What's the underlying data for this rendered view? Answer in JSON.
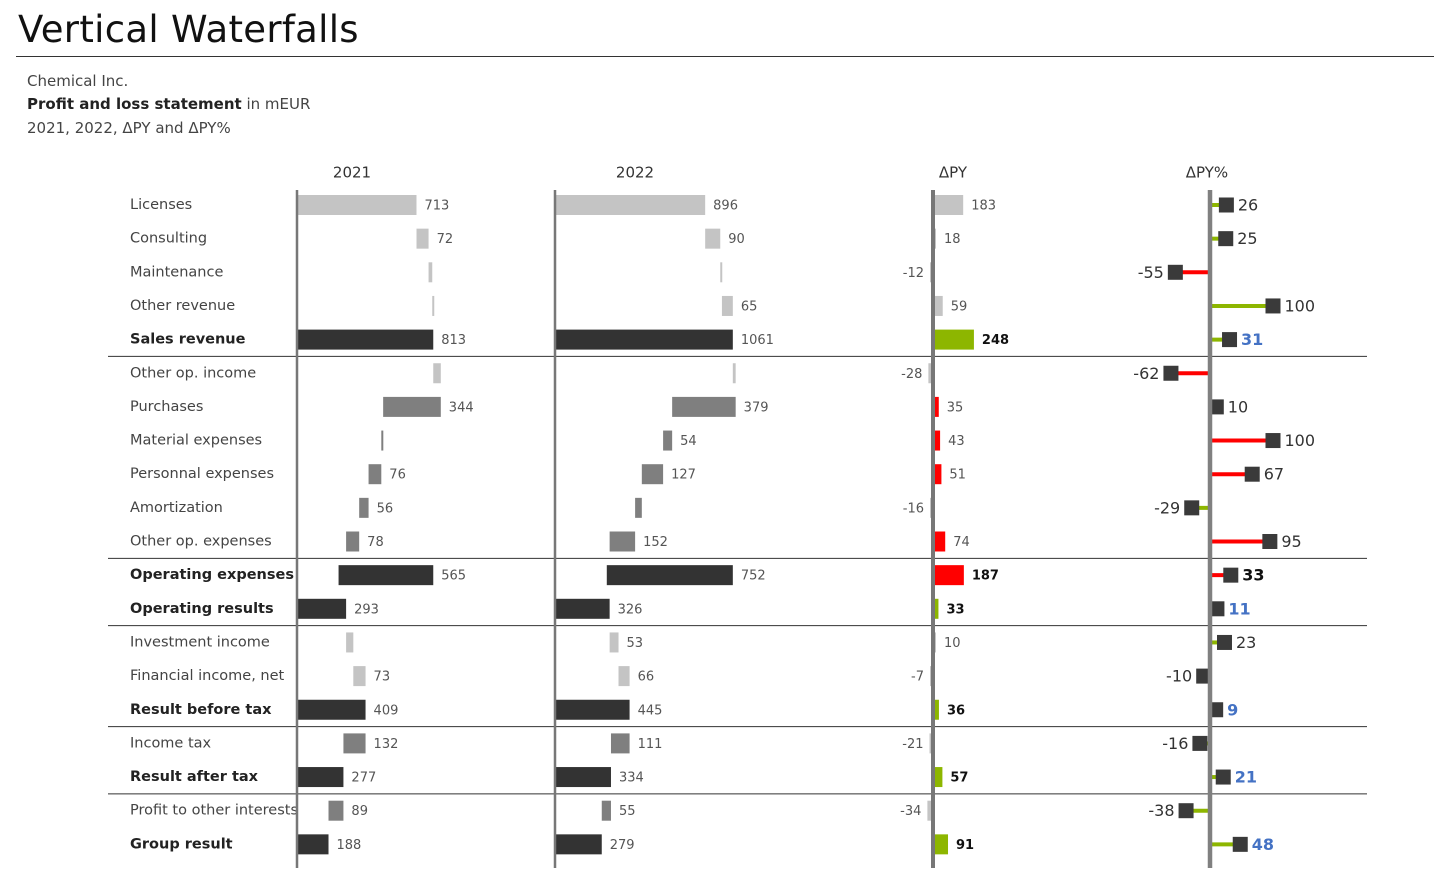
{
  "title": "Vertical Waterfalls",
  "subtitle": {
    "company": "Chemical Inc.",
    "statement_bold": "Profit and loss statement",
    "statement_unit": " in mEUR",
    "periods": "2021, 2022,  ΔPY and ΔPY%"
  },
  "colors": {
    "revenue": "#c4c4c4",
    "expense": "#7f7f7f",
    "total": "#333333",
    "positive": "#8db600",
    "negative": "#ff0000",
    "axis": "#808080",
    "highlight_text": "#4472c4"
  },
  "chart_data": {
    "type": "waterfall",
    "column_headers": [
      "2021",
      "2022",
      "ΔPY",
      "ΔPY%"
    ],
    "rows": [
      {
        "label": "Licenses",
        "bold": false,
        "kind": "inflow",
        "y2021": 713,
        "y2022": 896,
        "dpy": 183,
        "dpct": 26,
        "good": true
      },
      {
        "label": "Consulting",
        "bold": false,
        "kind": "inflow",
        "y2021": 72,
        "y2022": 90,
        "dpy": 18,
        "dpct": 25,
        "good": true
      },
      {
        "label": "Maintenance",
        "bold": false,
        "kind": "inflow",
        "y2021": 22,
        "y2022": 10,
        "y2021_label": "",
        "y2022_label": "",
        "dpy": -12,
        "dpct": -55,
        "good": false
      },
      {
        "label": "Other revenue",
        "bold": false,
        "kind": "inflow",
        "y2021": 6,
        "y2022": 65,
        "y2021_label": "",
        "dpy": 59,
        "dpct": 100,
        "good": true
      },
      {
        "label": "Sales revenue",
        "bold": true,
        "kind": "total",
        "y2021": 813,
        "y2022": 1061,
        "dpy": 248,
        "dpct": 31,
        "good": true,
        "separator_after": true
      },
      {
        "label": "Other op. income",
        "bold": false,
        "kind": "inflow_grey",
        "y2021": 45,
        "y2022": 17,
        "y2021_label": "",
        "y2022_label": "",
        "dpy": -28,
        "dpct": -62,
        "good": false
      },
      {
        "label": "Purchases",
        "bold": false,
        "kind": "outflow",
        "y2021": 344,
        "y2022": 379,
        "dpy": 35,
        "dpct": 10,
        "good": false
      },
      {
        "label": "Material expenses",
        "bold": false,
        "kind": "outflow",
        "y2021": 11,
        "y2022": 54,
        "y2021_label": "",
        "dpy": 43,
        "dpct": 100,
        "good": false
      },
      {
        "label": "Personnal expenses",
        "bold": false,
        "kind": "outflow",
        "y2021": 76,
        "y2022": 127,
        "dpy": 51,
        "dpct": 67,
        "good": false
      },
      {
        "label": "Amortization",
        "bold": false,
        "kind": "outflow",
        "y2021": 56,
        "y2022": 40,
        "y2022_label": "",
        "dpy": -16,
        "dpct": -29,
        "good": true
      },
      {
        "label": "Other op. expenses",
        "bold": false,
        "kind": "outflow",
        "y2021": 78,
        "y2022": 152,
        "dpy": 74,
        "dpct": 95,
        "good": false
      },
      {
        "label": "Operating expenses",
        "bold": true,
        "kind": "total_expense",
        "y2021": 565,
        "y2022": 752,
        "dpy": 187,
        "dpct": 33,
        "good": false,
        "separator_before": true
      },
      {
        "label": "Operating results",
        "bold": true,
        "kind": "total",
        "y2021": 293,
        "y2022": 326,
        "dpy": 33,
        "dpct": 11,
        "good": true,
        "separator_after": true
      },
      {
        "label": "Investment income",
        "bold": false,
        "kind": "inflow",
        "y2021": 43,
        "y2022": 53,
        "y2021_label": "",
        "dpy": 10,
        "dpct": 23,
        "good": true
      },
      {
        "label": "Financial income, net",
        "bold": false,
        "kind": "inflow",
        "y2021": 73,
        "y2022": 66,
        "dpy": -7,
        "dpct": -10,
        "good": false
      },
      {
        "label": "Result before tax",
        "bold": true,
        "kind": "total",
        "y2021": 409,
        "y2022": 445,
        "dpy": 36,
        "dpct": 9,
        "good": true,
        "separator_after": true
      },
      {
        "label": "Income tax",
        "bold": false,
        "kind": "outflow",
        "y2021": 132,
        "y2022": 111,
        "dpy": -21,
        "dpct": -16,
        "good": true
      },
      {
        "label": "Result after tax",
        "bold": true,
        "kind": "total",
        "y2021": 277,
        "y2022": 334,
        "dpy": 57,
        "dpct": 21,
        "good": true,
        "separator_after": true
      },
      {
        "label": "Profit to other interests",
        "bold": false,
        "kind": "outflow",
        "y2021": 89,
        "y2022": 55,
        "dpy": -34,
        "dpct": -38,
        "good": true
      },
      {
        "label": "Group result",
        "bold": true,
        "kind": "total",
        "y2021": 188,
        "y2022": 279,
        "dpy": 91,
        "dpct": 48,
        "good": true
      }
    ]
  }
}
